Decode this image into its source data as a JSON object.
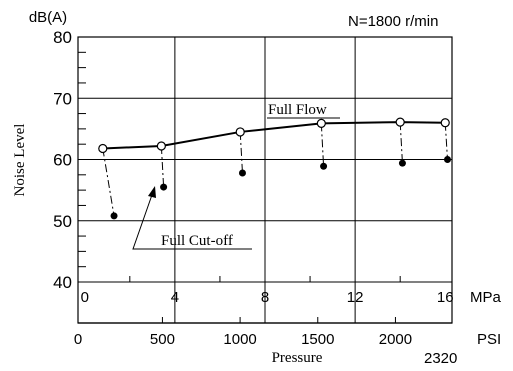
{
  "chart_data": {
    "type": "line",
    "ylabel": "Noise Level",
    "y_unit": "dB(A)",
    "xlabel": "Pressure",
    "annotation_speed": "N=1800 r/min",
    "ylim": [
      40,
      80
    ],
    "y_ticks": [
      "40",
      "50",
      "60",
      "70",
      "80"
    ],
    "x_axis_mpa": {
      "unit": "MPa",
      "range": [
        -0.3,
        16.3
      ],
      "ticks": [
        "0",
        "4",
        "8",
        "12",
        "16"
      ]
    },
    "x_axis_psi": {
      "unit": "PSI",
      "ticks": [
        "0",
        "500",
        "1000",
        "1500",
        "2000"
      ],
      "end_label": "2320"
    },
    "grid": true,
    "series": [
      {
        "name": "Full Flow",
        "marker": "open-circle",
        "x": [
          0.8,
          3.4,
          6.9,
          10.5,
          14.0,
          16.0
        ],
        "y": [
          61.8,
          62.2,
          64.5,
          65.9,
          66.1,
          66.0
        ]
      },
      {
        "name": "Full Cut-off",
        "marker": "filled-circle",
        "x": [
          1.3,
          3.5,
          7.0,
          10.6,
          14.1,
          16.1
        ],
        "y": [
          50.8,
          55.5,
          57.8,
          58.9,
          59.4,
          60.0
        ]
      }
    ]
  }
}
